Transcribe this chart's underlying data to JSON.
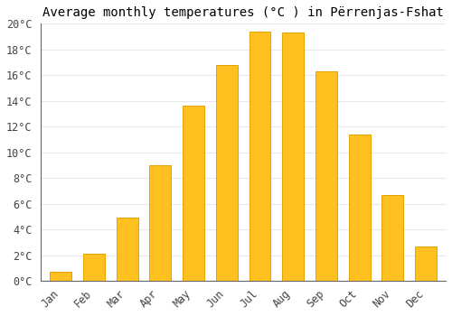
{
  "title": "Average monthly temperatures (°C ) in Përrenjas-Fshat",
  "months": [
    "Jan",
    "Feb",
    "Mar",
    "Apr",
    "May",
    "Jun",
    "Jul",
    "Aug",
    "Sep",
    "Oct",
    "Nov",
    "Dec"
  ],
  "values": [
    0.7,
    2.1,
    4.9,
    9.0,
    13.6,
    16.8,
    19.4,
    19.3,
    16.3,
    11.4,
    6.7,
    2.7
  ],
  "bar_color": "#FFC020",
  "bar_edge_color": "#E8A000",
  "ylim": [
    0,
    20
  ],
  "yticks": [
    0,
    2,
    4,
    6,
    8,
    10,
    12,
    14,
    16,
    18,
    20
  ],
  "ytick_labels": [
    "0°C",
    "2°C",
    "4°C",
    "6°C",
    "8°C",
    "10°C",
    "12°C",
    "14°C",
    "16°C",
    "18°C",
    "20°C"
  ],
  "background_color": "#ffffff",
  "grid_color": "#e8e8e8",
  "title_fontsize": 10,
  "tick_fontsize": 8.5,
  "bar_width": 0.65
}
